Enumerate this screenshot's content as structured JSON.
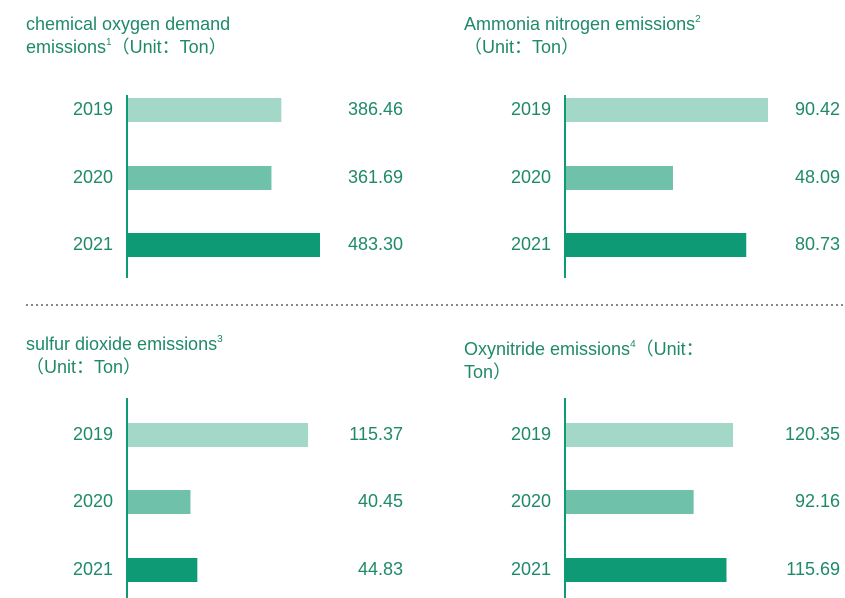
{
  "chart_data": [
    {
      "type": "bar",
      "title": "chemical oxygen demand emissions",
      "note": "1",
      "unit": "（Unit：Ton）",
      "categories": [
        "2019",
        "2020",
        "2021"
      ],
      "values": [
        386.46,
        361.69,
        483.3
      ],
      "value_labels": [
        "386.46",
        "361.69",
        "483.30"
      ],
      "colors": [
        "#a3d8c8",
        "#6fc1aa",
        "#0e9a74"
      ]
    },
    {
      "type": "bar",
      "title": "Ammonia nitrogen emissions",
      "note": "2",
      "unit": "（Unit：Ton）",
      "categories": [
        "2019",
        "2020",
        "2021"
      ],
      "values": [
        90.42,
        48.09,
        80.73
      ],
      "value_labels": [
        "90.42",
        "48.09",
        "80.73"
      ],
      "colors": [
        "#a3d8c8",
        "#6fc1aa",
        "#0e9a74"
      ]
    },
    {
      "type": "bar",
      "title": "sulfur dioxide emissions",
      "note": "3",
      "unit": "（Unit：Ton）",
      "categories": [
        "2019",
        "2020",
        "2021"
      ],
      "values": [
        115.37,
        40.45,
        44.83
      ],
      "value_labels": [
        "115.37",
        "40.45",
        "44.83"
      ],
      "colors": [
        "#a3d8c8",
        "#6fc1aa",
        "#0e9a74"
      ]
    },
    {
      "type": "bar",
      "title": "Oxynitride emissions",
      "note": "4",
      "unit": "（Unit：Ton）",
      "categories": [
        "2019",
        "2020",
        "2021"
      ],
      "values": [
        120.35,
        92.16,
        115.69
      ],
      "value_labels": [
        "120.35",
        "92.16",
        "115.69"
      ],
      "colors": [
        "#a3d8c8",
        "#6fc1aa",
        "#0e9a74"
      ]
    }
  ]
}
